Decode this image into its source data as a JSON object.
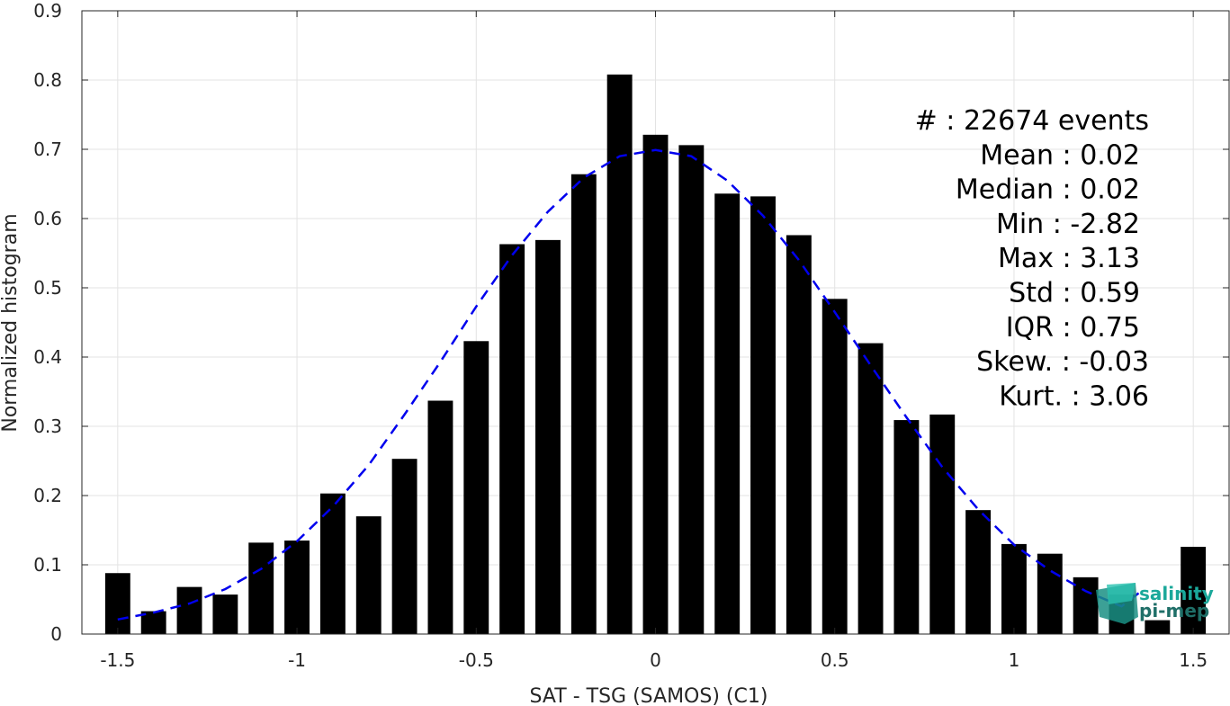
{
  "chart_data": {
    "type": "bar",
    "xlabel": "SAT - TSG (SAMOS) (C1)",
    "ylabel": "Normalized histogram",
    "xlim": [
      -1.6,
      1.6
    ],
    "ylim": [
      0,
      0.9
    ],
    "grid": true,
    "xticks": [
      -1.5,
      -1,
      -0.5,
      0,
      0.5,
      1,
      1.5
    ],
    "xtick_labels": [
      "-1.5",
      "-1",
      "-0.5",
      "0",
      "0.5",
      "1",
      "1.5"
    ],
    "yticks": [
      0,
      0.1,
      0.2,
      0.3,
      0.4,
      0.5,
      0.6,
      0.7,
      0.8,
      0.9
    ],
    "ytick_labels": [
      "0",
      "0.1",
      "0.2",
      "0.3",
      "0.4",
      "0.5",
      "0.6",
      "0.7",
      "0.8",
      "0.9"
    ],
    "bar_width": 0.07,
    "bar_centers": [
      -1.5,
      -1.4,
      -1.3,
      -1.2,
      -1.1,
      -1.0,
      -0.9,
      -0.8,
      -0.7,
      -0.6,
      -0.5,
      -0.4,
      -0.3,
      -0.2,
      -0.1,
      0.0,
      0.1,
      0.2,
      0.3,
      0.4,
      0.5,
      0.6,
      0.7,
      0.8,
      0.9,
      1.0,
      1.1,
      1.2,
      1.3,
      1.4,
      1.5
    ],
    "values": [
      0.088,
      0.033,
      0.068,
      0.057,
      0.132,
      0.135,
      0.203,
      0.17,
      0.253,
      0.337,
      0.423,
      0.563,
      0.569,
      0.664,
      0.808,
      0.721,
      0.706,
      0.636,
      0.632,
      0.576,
      0.484,
      0.42,
      0.309,
      0.317,
      0.179,
      0.13,
      0.116,
      0.082,
      0.057,
      0.02,
      0.126
    ],
    "bar_color": "#000000",
    "fit_curve": {
      "style": "dashed",
      "color": "#0000ee",
      "x": [
        -1.5,
        -1.4,
        -1.3,
        -1.2,
        -1.1,
        -1.0,
        -0.9,
        -0.8,
        -0.7,
        -0.6,
        -0.5,
        -0.4,
        -0.3,
        -0.2,
        -0.1,
        0.0,
        0.1,
        0.2,
        0.3,
        0.4,
        0.5,
        0.6,
        0.7,
        0.8,
        0.9,
        1.0,
        1.1,
        1.2,
        1.3,
        1.35
      ],
      "y": [
        0.021,
        0.031,
        0.044,
        0.065,
        0.094,
        0.134,
        0.184,
        0.244,
        0.317,
        0.393,
        0.473,
        0.547,
        0.61,
        0.659,
        0.69,
        0.699,
        0.69,
        0.655,
        0.604,
        0.54,
        0.465,
        0.388,
        0.313,
        0.241,
        0.18,
        0.129,
        0.092,
        0.062,
        0.04,
        0.06
      ]
    },
    "stats": [
      {
        "label": "#  : 22674 events"
      },
      {
        "label": "Mean : 0.02"
      },
      {
        "label": "Median : 0.02"
      },
      {
        "label": "Min : -2.82"
      },
      {
        "label": "Max : 3.13"
      },
      {
        "label": "Std : 0.59"
      },
      {
        "label": "IQR : 0.75"
      },
      {
        "label": "Skew. : -0.03"
      },
      {
        "label": "Kurt. : 3.06"
      }
    ]
  },
  "logo": {
    "line1": "salinity",
    "line2": "pi-mep",
    "color1": "#1aa89a",
    "color2": "#1f6f68"
  }
}
